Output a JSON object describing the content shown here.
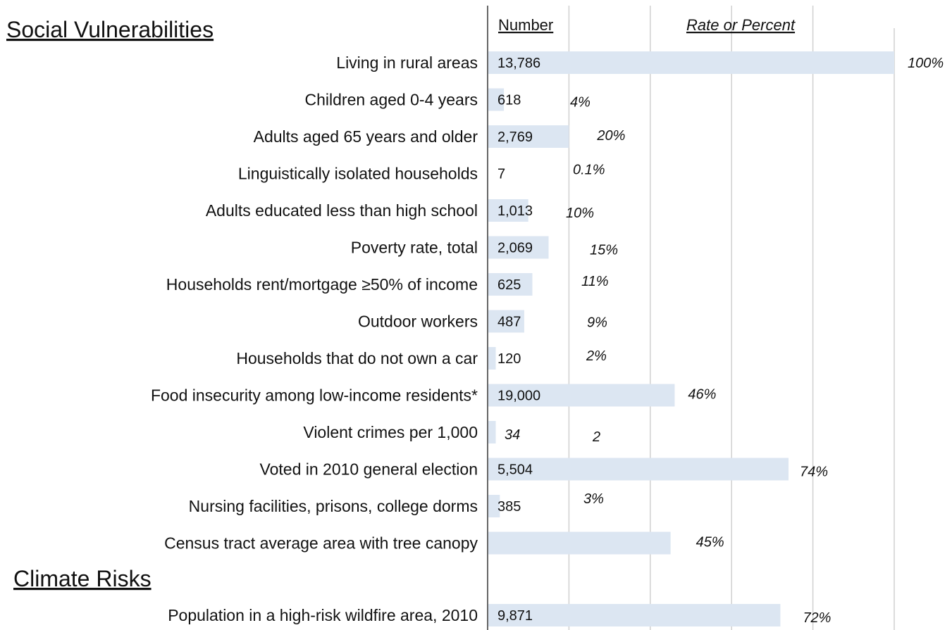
{
  "sections": {
    "social": "Social Vulnerabilities",
    "climate": "Climate Risks"
  },
  "headers": {
    "number": "Number",
    "rate": "Rate or Percent"
  },
  "colors": {
    "bar": "#dce6f2",
    "grid": "#d0d0d0",
    "axis": "#666666"
  },
  "chart_data": {
    "type": "bar",
    "orientation": "horizontal",
    "xlim": [
      0,
      100
    ],
    "grid": true,
    "rows": [
      {
        "label": "Living in rural areas",
        "number": "13,786",
        "pct": "100%",
        "value": 100,
        "section": "social"
      },
      {
        "label": "Children aged 0-4 years",
        "number": "618",
        "pct": "4%",
        "value": 4,
        "section": "social"
      },
      {
        "label": "Adults aged 65 years and older",
        "number": "2,769",
        "pct": "20%",
        "value": 20,
        "section": "social"
      },
      {
        "label": "Linguistically isolated households",
        "number": "7",
        "pct": "0.1%",
        "value": 0.1,
        "section": "social"
      },
      {
        "label": "Adults educated less than high school",
        "number": "1,013",
        "pct": "10%",
        "value": 10,
        "section": "social"
      },
      {
        "label": "Poverty rate, total",
        "number": "2,069",
        "pct": "15%",
        "value": 15,
        "section": "social"
      },
      {
        "label": "Households rent/mortgage ≥50% of income",
        "number": "625",
        "pct": "11%",
        "value": 11,
        "section": "social"
      },
      {
        "label": "Outdoor workers",
        "number": "487",
        "pct": "9%",
        "value": 9,
        "section": "social"
      },
      {
        "label": "Households that do not own a car",
        "number": "120",
        "pct": "2%",
        "value": 2,
        "section": "social"
      },
      {
        "label": "Food insecurity among low-income residents*",
        "number": "19,000",
        "pct": "46%",
        "value": 46,
        "section": "social"
      },
      {
        "label": "Violent crimes per 1,000",
        "number": "34",
        "pct": "2",
        "value": 2,
        "section": "social"
      },
      {
        "label": "Voted in 2010 general election",
        "number": "5,504",
        "pct": "74%",
        "value": 74,
        "section": "social"
      },
      {
        "label": "Nursing facilities, prisons, college dorms",
        "number": "385",
        "pct": "3%",
        "value": 3,
        "section": "social"
      },
      {
        "label": "Census tract average area with tree canopy",
        "number": "",
        "pct": "45%",
        "value": 45,
        "section": "social"
      },
      {
        "label": "Population in a high-risk wildfire area, 2010",
        "number": "9,871",
        "pct": "72%",
        "value": 72,
        "section": "climate"
      }
    ]
  }
}
